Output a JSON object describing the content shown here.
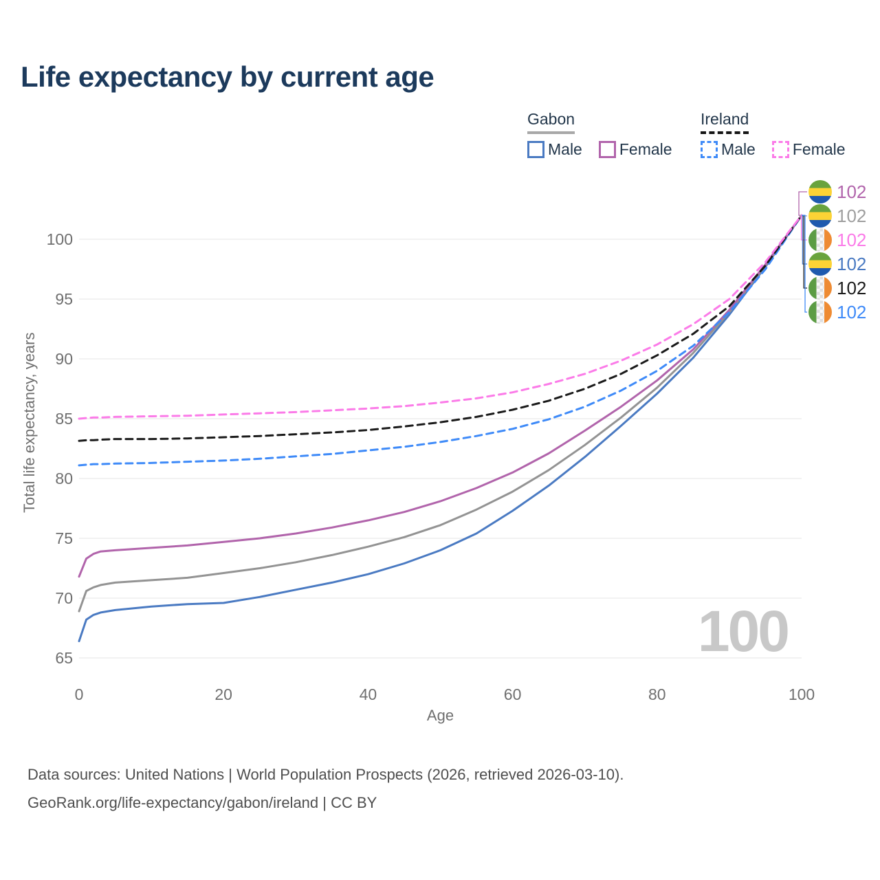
{
  "page_title": "Life expectancy by current age",
  "legend": {
    "groups": [
      {
        "label": "Gabon",
        "line_style": "solid",
        "underline_color": "#a8a8a8",
        "items": [
          {
            "label": "Male",
            "color": "#4a7ac2"
          },
          {
            "label": "Female",
            "color": "#b164ab"
          }
        ]
      },
      {
        "label": "Ireland",
        "line_style": "dashed",
        "underline_color": "#151515",
        "items": [
          {
            "label": "Male",
            "color": "#3e8af8"
          },
          {
            "label": "Female",
            "color": "#fb7be8"
          }
        ]
      }
    ]
  },
  "watermark_age": "100",
  "footer": {
    "line1": "Data sources: United Nations | World Population Prospects (2026, retrieved 2026-03-10).",
    "line2": "GeoRank.org/life-expectancy/gabon/ireland | CC BY"
  },
  "chart_data": {
    "type": "line",
    "title": "Life expectancy by current age",
    "xlabel": "Age",
    "ylabel": "Total life expectancy, years",
    "xlim": [
      0,
      100
    ],
    "ylim": [
      65,
      103.5
    ],
    "xticks": [
      0,
      20,
      40,
      60,
      80,
      100
    ],
    "yticks": [
      65,
      70,
      75,
      80,
      85,
      90,
      95,
      100
    ],
    "grid": "horizontal-only",
    "legend_position": "top-right",
    "x": [
      0,
      1,
      2,
      3,
      5,
      10,
      15,
      20,
      25,
      30,
      35,
      40,
      45,
      50,
      55,
      60,
      65,
      70,
      75,
      80,
      85,
      90,
      95,
      100
    ],
    "series": [
      {
        "id": "gabon-male",
        "name": "Gabon — Male",
        "country": "Gabon",
        "sex": "Male",
        "line": "solid",
        "color": "#4a7ac2",
        "values": [
          66.4,
          68.2,
          68.6,
          68.8,
          69.0,
          69.3,
          69.5,
          69.6,
          70.1,
          70.7,
          71.3,
          72.0,
          72.9,
          74.0,
          75.4,
          77.3,
          79.4,
          81.8,
          84.4,
          87.1,
          90.1,
          93.7,
          97.7,
          102
        ]
      },
      {
        "id": "gabon-both",
        "name": "Gabon — Both sexes",
        "country": "Gabon",
        "sex": "Both sexes",
        "line": "solid",
        "color": "#939393",
        "values": [
          68.9,
          70.6,
          70.9,
          71.1,
          71.3,
          71.5,
          71.7,
          72.1,
          72.5,
          73.0,
          73.6,
          74.3,
          75.1,
          76.1,
          77.4,
          78.9,
          80.7,
          82.8,
          85.1,
          87.6,
          90.5,
          93.9,
          97.8,
          102
        ]
      },
      {
        "id": "gabon-female",
        "name": "Gabon — Female",
        "country": "Gabon",
        "sex": "Female",
        "line": "solid",
        "color": "#b164ab",
        "values": [
          71.8,
          73.3,
          73.7,
          73.9,
          74.0,
          74.2,
          74.4,
          74.7,
          75.0,
          75.4,
          75.9,
          76.5,
          77.2,
          78.1,
          79.2,
          80.5,
          82.1,
          84.0,
          86.0,
          88.2,
          90.8,
          94.1,
          97.9,
          102
        ]
      },
      {
        "id": "ireland-male",
        "name": "Ireland — Male",
        "country": "Ireland",
        "sex": "Male",
        "line": "dashed",
        "color": "#3e8af8",
        "values": [
          81.1,
          81.15,
          81.2,
          81.2,
          81.25,
          81.3,
          81.4,
          81.5,
          81.65,
          81.85,
          82.05,
          82.35,
          82.65,
          83.05,
          83.55,
          84.15,
          84.95,
          86.0,
          87.35,
          89.0,
          91.1,
          93.9,
          97.5,
          102
        ]
      },
      {
        "id": "ireland-both",
        "name": "Ireland — Both sexes",
        "country": "Ireland",
        "sex": "Both sexes",
        "line": "dashed",
        "color": "#1a1a1a",
        "values": [
          83.15,
          83.2,
          83.2,
          83.25,
          83.3,
          83.3,
          83.35,
          83.45,
          83.55,
          83.7,
          83.85,
          84.05,
          84.35,
          84.7,
          85.15,
          85.75,
          86.5,
          87.5,
          88.75,
          90.3,
          92.1,
          94.4,
          97.8,
          102
        ]
      },
      {
        "id": "ireland-female",
        "name": "Ireland — Female",
        "country": "Ireland",
        "sex": "Female",
        "line": "dashed",
        "color": "#fb7be8",
        "values": [
          85.0,
          85.05,
          85.1,
          85.1,
          85.15,
          85.2,
          85.25,
          85.35,
          85.45,
          85.55,
          85.7,
          85.85,
          86.05,
          86.35,
          86.7,
          87.2,
          87.9,
          88.75,
          89.85,
          91.2,
          92.9,
          95.0,
          98.1,
          102
        ]
      }
    ],
    "end_labels": [
      {
        "flag": "gabon",
        "series_id": "gabon-female",
        "value": "102",
        "color": "#b164ab"
      },
      {
        "flag": "gabon",
        "series_id": "gabon-both",
        "value": "102",
        "color": "#9e9e9e"
      },
      {
        "flag": "ireland",
        "series_id": "ireland-female",
        "value": "102",
        "color": "#fb7be8"
      },
      {
        "flag": "gabon",
        "series_id": "gabon-male",
        "value": "102",
        "color": "#4a7ac2"
      },
      {
        "flag": "ireland",
        "series_id": "ireland-both",
        "value": "102",
        "color": "#1a1a1a"
      },
      {
        "flag": "ireland",
        "series_id": "ireland-male",
        "value": "102",
        "color": "#3e8af8"
      }
    ]
  }
}
